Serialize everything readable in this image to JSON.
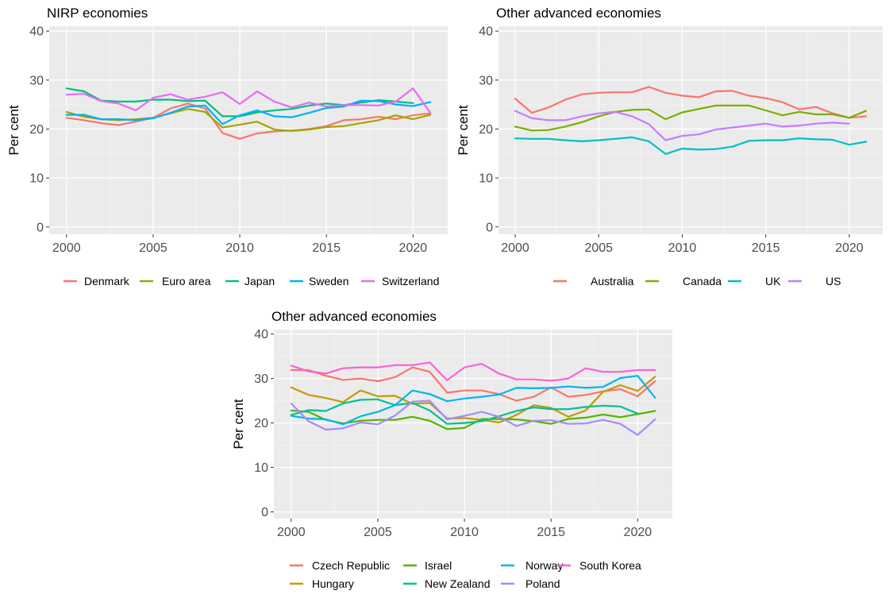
{
  "chart_data": [
    {
      "type": "line",
      "title": "NIRP economies",
      "ylabel": "Per cent",
      "xlabel": "",
      "xlim": [
        1999,
        2022
      ],
      "ylim": [
        -1.5,
        41
      ],
      "xticks": [
        2000,
        2005,
        2010,
        2015,
        2020
      ],
      "yticks": [
        0,
        10,
        20,
        30,
        40
      ],
      "grid": true,
      "legend_position": "bottom",
      "x": [
        2000,
        2001,
        2002,
        2003,
        2004,
        2005,
        2006,
        2007,
        2008,
        2009,
        2010,
        2011,
        2012,
        2013,
        2014,
        2015,
        2016,
        2017,
        2018,
        2019,
        2020,
        2021
      ],
      "series": [
        {
          "name": "Denmark",
          "color": "#F8766D",
          "values": [
            22.3,
            21.8,
            21.2,
            20.8,
            21.5,
            22.3,
            24.2,
            25.2,
            24.2,
            19.2,
            18.0,
            19.1,
            19.5,
            19.7,
            20.0,
            20.6,
            21.8,
            22.0,
            22.5,
            22.0,
            22.8,
            23.2
          ]
        },
        {
          "name": "Euro area",
          "color": "#A3A500",
          "values": [
            23.5,
            22.5,
            22.0,
            21.8,
            22.0,
            22.3,
            23.2,
            24.1,
            23.5,
            20.3,
            20.9,
            21.5,
            19.9,
            19.6,
            19.9,
            20.4,
            20.6,
            21.2,
            21.8,
            22.8,
            22.0,
            22.9
          ]
        },
        {
          "name": "Japan",
          "color": "#00BF7D",
          "values": [
            28.3,
            27.7,
            25.8,
            25.6,
            25.6,
            26.0,
            26.0,
            25.7,
            25.8,
            22.6,
            22.6,
            23.4,
            23.8,
            24.1,
            24.8,
            25.2,
            24.9,
            25.4,
            25.9,
            25.6,
            25.3,
            null
          ]
        },
        {
          "name": "Sweden",
          "color": "#00B0F6",
          "values": [
            22.9,
            22.9,
            22.0,
            22.0,
            21.8,
            22.2,
            23.3,
            24.6,
            24.8,
            21.0,
            22.8,
            23.8,
            22.6,
            22.4,
            23.3,
            24.3,
            24.6,
            25.8,
            25.7,
            25.0,
            24.7,
            25.5
          ]
        },
        {
          "name": "Switzerland",
          "color": "#E76BF3",
          "values": [
            27.0,
            27.2,
            25.7,
            25.2,
            23.8,
            26.4,
            27.1,
            26.0,
            26.6,
            27.5,
            25.1,
            27.7,
            25.6,
            24.4,
            25.4,
            24.6,
            24.9,
            24.9,
            24.8,
            25.6,
            28.3,
            23.3
          ]
        }
      ]
    },
    {
      "type": "line",
      "title": "Other advanced economies",
      "ylabel": "Per cent",
      "xlabel": "",
      "xlim": [
        1999,
        2022
      ],
      "ylim": [
        -1.5,
        41
      ],
      "xticks": [
        2000,
        2005,
        2010,
        2015,
        2020
      ],
      "yticks": [
        0,
        10,
        20,
        30,
        40
      ],
      "grid": true,
      "legend_position": "bottom",
      "x": [
        2000,
        2001,
        2002,
        2003,
        2004,
        2005,
        2006,
        2007,
        2008,
        2009,
        2010,
        2011,
        2012,
        2013,
        2014,
        2015,
        2016,
        2017,
        2018,
        2019,
        2020,
        2021
      ],
      "series": [
        {
          "name": "Australia",
          "color": "#F8766D",
          "values": [
            26.2,
            23.3,
            24.4,
            26.0,
            27.1,
            27.4,
            27.5,
            27.5,
            28.6,
            27.4,
            26.8,
            26.5,
            27.7,
            27.8,
            26.8,
            26.3,
            25.5,
            24.0,
            24.5,
            23.2,
            22.3,
            22.6
          ]
        },
        {
          "name": "Canada",
          "color": "#7CAE00",
          "values": [
            20.5,
            19.7,
            19.8,
            20.5,
            21.4,
            22.6,
            23.5,
            23.9,
            24.0,
            22.0,
            23.4,
            24.1,
            24.8,
            24.8,
            24.8,
            23.8,
            22.8,
            23.5,
            23.0,
            23.0,
            22.3,
            23.7
          ]
        },
        {
          "name": "UK",
          "color": "#00BFC4",
          "values": [
            18.1,
            18.0,
            18.0,
            17.7,
            17.5,
            17.7,
            18.0,
            18.3,
            17.5,
            14.9,
            16.0,
            15.8,
            15.9,
            16.4,
            17.6,
            17.7,
            17.7,
            18.1,
            17.9,
            17.8,
            16.8,
            17.4
          ]
        },
        {
          "name": "US",
          "color": "#C77CFF",
          "values": [
            23.7,
            22.2,
            21.8,
            21.8,
            22.6,
            23.2,
            23.5,
            22.6,
            21.0,
            17.7,
            18.6,
            18.9,
            19.9,
            20.3,
            20.7,
            21.1,
            20.5,
            20.7,
            21.1,
            21.3,
            21.1,
            null
          ]
        }
      ]
    },
    {
      "type": "line",
      "title": "Other advanced economies",
      "ylabel": "Per cent",
      "xlabel": "",
      "xlim": [
        1999,
        2022
      ],
      "ylim": [
        -1.5,
        41
      ],
      "xticks": [
        2000,
        2005,
        2010,
        2015,
        2020
      ],
      "yticks": [
        0,
        10,
        20,
        30,
        40
      ],
      "grid": true,
      "legend_position": "bottom",
      "x": [
        2000,
        2001,
        2002,
        2003,
        2004,
        2005,
        2006,
        2007,
        2008,
        2009,
        2010,
        2011,
        2012,
        2013,
        2014,
        2015,
        2016,
        2017,
        2018,
        2019,
        2020,
        2021
      ],
      "series": [
        {
          "name": "Czech Republic",
          "color": "#F8766D",
          "values": [
            31.9,
            31.9,
            30.6,
            29.7,
            30.0,
            29.4,
            30.3,
            32.5,
            31.5,
            26.8,
            27.3,
            27.3,
            26.5,
            25.0,
            25.9,
            28.0,
            25.9,
            26.3,
            27.1,
            27.6,
            26.0,
            29.4
          ]
        },
        {
          "name": "Hungary",
          "color": "#C49A00",
          "values": [
            28.0,
            26.3,
            25.6,
            24.7,
            27.3,
            26.0,
            26.1,
            24.3,
            24.5,
            21.0,
            21.1,
            20.7,
            20.1,
            21.8,
            24.0,
            23.4,
            21.4,
            22.8,
            27.0,
            28.5,
            27.2,
            30.4
          ]
        },
        {
          "name": "Israel",
          "color": "#53B400",
          "values": [
            22.8,
            22.5,
            20.7,
            19.9,
            20.5,
            20.7,
            20.7,
            21.4,
            20.5,
            18.6,
            18.9,
            20.9,
            20.9,
            20.8,
            20.4,
            19.8,
            20.9,
            21.2,
            21.9,
            21.3,
            22.0,
            22.7
          ]
        },
        {
          "name": "New Zealand",
          "color": "#00C094",
          "values": [
            21.8,
            22.9,
            22.7,
            24.4,
            25.2,
            25.3,
            24.0,
            24.5,
            22.8,
            19.8,
            20.0,
            20.4,
            21.5,
            22.7,
            23.5,
            23.1,
            23.1,
            23.6,
            23.9,
            23.7,
            22.1,
            null
          ]
        },
        {
          "name": "Norway",
          "color": "#00B6EB",
          "values": [
            21.6,
            21.0,
            20.8,
            19.7,
            21.5,
            22.5,
            24.0,
            27.3,
            26.5,
            24.9,
            25.5,
            25.9,
            26.4,
            27.9,
            27.8,
            27.9,
            28.2,
            27.9,
            28.1,
            30.1,
            30.6,
            25.7
          ]
        },
        {
          "name": "Poland",
          "color": "#A58AFF",
          "values": [
            24.4,
            20.4,
            18.5,
            18.8,
            20.1,
            19.7,
            21.7,
            24.8,
            25.0,
            20.8,
            21.6,
            22.5,
            21.4,
            19.3,
            20.5,
            20.6,
            19.8,
            19.9,
            20.7,
            19.8,
            17.3,
            20.8
          ]
        },
        {
          "name": "South Korea",
          "color": "#FB61D7",
          "values": [
            32.9,
            31.6,
            31.1,
            32.3,
            32.5,
            32.5,
            33.0,
            33.0,
            33.6,
            29.6,
            32.5,
            33.3,
            31.1,
            29.8,
            29.8,
            29.5,
            30.0,
            32.3,
            31.5,
            31.5,
            31.9,
            31.9
          ]
        }
      ]
    }
  ]
}
